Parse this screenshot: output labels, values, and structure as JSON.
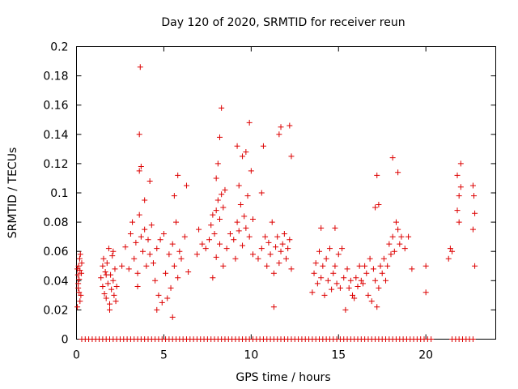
{
  "chart_data": {
    "type": "scatter",
    "title": "Day 120 of 2020, SRMTID for receiver reun",
    "xlabel": "GPS time / hours",
    "ylabel": "SRMTID / TECUs",
    "xlim": [
      0,
      24
    ],
    "ylim": [
      0,
      0.2
    ],
    "xticks": [
      0,
      5,
      10,
      15,
      20
    ],
    "xtick_labels": [
      "0",
      "5",
      "10",
      "15",
      "20"
    ],
    "yticks": [
      0,
      0.02,
      0.04,
      0.06,
      0.08,
      0.1,
      0.12,
      0.14,
      0.16,
      0.18,
      0.2
    ],
    "ytick_labels": [
      "0",
      "0.02",
      "0.04",
      "0.06",
      "0.08",
      "0.1",
      "0.12",
      "0.14",
      "0.16",
      "0.18",
      "0.2"
    ],
    "grid": false,
    "marker": "+",
    "color": "#dd0000",
    "series": [
      {
        "name": "SRMTID",
        "x": [
          0.05,
          0.08,
          0.1,
          0.12,
          0.15,
          0.18,
          0.2,
          0.22,
          0.25,
          0.28,
          0.3,
          0.05,
          0.1,
          0.15,
          0.2,
          1.4,
          1.5,
          1.55,
          1.6,
          1.65,
          1.7,
          1.75,
          1.8,
          1.85,
          1.9,
          1.95,
          2.0,
          2.05,
          2.1,
          2.15,
          2.2,
          2.25,
          2.3,
          1.5,
          1.7,
          1.9,
          2.1,
          2.6,
          2.8,
          3.0,
          3.1,
          3.2,
          3.3,
          3.4,
          3.5,
          3.6,
          3.7,
          3.8,
          3.9,
          4.0,
          4.1,
          4.2,
          4.3,
          3.5,
          3.6,
          3.7,
          3.9,
          4.2,
          3.6,
          3.65,
          4.4,
          4.5,
          4.6,
          4.7,
          4.8,
          4.9,
          5.0,
          5.1,
          5.2,
          5.3,
          5.4,
          5.5,
          5.6,
          5.7,
          5.8,
          5.9,
          6.0,
          6.2,
          6.4,
          4.6,
          5.5,
          5.6,
          5.8,
          6.3,
          6.9,
          7.0,
          7.2,
          7.4,
          7.6,
          7.7,
          7.8,
          7.9,
          8.0,
          8.1,
          8.2,
          8.3,
          8.4,
          8.5,
          8.0,
          8.1,
          8.2,
          8.0,
          8.2,
          8.3,
          7.8,
          8.4,
          8.6,
          8.8,
          9.0,
          9.1,
          9.2,
          9.3,
          9.4,
          9.5,
          9.6,
          9.7,
          9.8,
          9.9,
          10.0,
          10.1,
          9.5,
          9.7,
          9.9,
          10.1,
          9.2,
          9.3,
          10.4,
          10.6,
          10.8,
          10.9,
          11.0,
          11.1,
          11.2,
          11.3,
          11.4,
          11.5,
          11.6,
          11.7,
          11.8,
          11.9,
          12.0,
          12.1,
          12.2,
          12.3,
          10.6,
          10.7,
          11.6,
          11.7,
          12.2,
          12.3,
          11.3,
          13.5,
          13.6,
          13.7,
          13.8,
          13.9,
          14.0,
          14.1,
          14.2,
          14.3,
          14.4,
          14.5,
          14.6,
          14.7,
          14.8,
          14.9,
          15.0,
          15.1,
          15.2,
          15.3,
          15.4,
          15.5,
          15.6,
          15.7,
          15.8,
          15.9,
          16.0,
          16.1,
          16.2,
          16.3,
          14.0,
          14.8,
          16.4,
          16.5,
          16.6,
          16.7,
          16.8,
          16.9,
          17.0,
          17.1,
          17.2,
          17.3,
          17.4,
          17.5,
          17.6,
          17.7,
          17.8,
          17.9,
          18.0,
          18.1,
          18.2,
          18.3,
          18.4,
          18.5,
          18.6,
          18.8,
          19.0,
          17.1,
          17.2,
          17.3,
          18.1,
          18.4,
          19.2,
          20.0,
          20.0,
          21.3,
          21.4,
          21.5,
          21.8,
          21.9,
          22.0,
          21.8,
          21.9,
          22.0,
          22.7,
          22.75,
          22.8,
          22.7,
          22.8
        ],
        "y": [
          0.048,
          0.044,
          0.038,
          0.05,
          0.032,
          0.055,
          0.026,
          0.058,
          0.03,
          0.045,
          0.052,
          0.022,
          0.035,
          0.041,
          0.047,
          0.042,
          0.036,
          0.055,
          0.031,
          0.046,
          0.028,
          0.052,
          0.038,
          0.062,
          0.024,
          0.044,
          0.034,
          0.057,
          0.04,
          0.03,
          0.048,
          0.026,
          0.036,
          0.05,
          0.044,
          0.02,
          0.06,
          0.05,
          0.063,
          0.048,
          0.072,
          0.08,
          0.055,
          0.066,
          0.045,
          0.085,
          0.07,
          0.06,
          0.075,
          0.05,
          0.068,
          0.058,
          0.078,
          0.036,
          0.115,
          0.118,
          0.095,
          0.108,
          0.14,
          0.186,
          0.052,
          0.04,
          0.062,
          0.03,
          0.068,
          0.025,
          0.072,
          0.045,
          0.028,
          0.058,
          0.035,
          0.065,
          0.05,
          0.08,
          0.042,
          0.06,
          0.055,
          0.07,
          0.046,
          0.02,
          0.015,
          0.098,
          0.112,
          0.105,
          0.058,
          0.075,
          0.065,
          0.062,
          0.068,
          0.078,
          0.085,
          0.072,
          0.088,
          0.095,
          0.082,
          0.099,
          0.09,
          0.102,
          0.11,
          0.12,
          0.138,
          0.056,
          0.065,
          0.158,
          0.042,
          0.05,
          0.062,
          0.072,
          0.068,
          0.055,
          0.08,
          0.074,
          0.092,
          0.064,
          0.084,
          0.076,
          0.098,
          0.07,
          0.115,
          0.082,
          0.125,
          0.128,
          0.148,
          0.058,
          0.132,
          0.105,
          0.055,
          0.062,
          0.07,
          0.05,
          0.066,
          0.058,
          0.08,
          0.045,
          0.063,
          0.07,
          0.052,
          0.06,
          0.065,
          0.072,
          0.055,
          0.062,
          0.068,
          0.048,
          0.1,
          0.132,
          0.14,
          0.145,
          0.146,
          0.125,
          0.022,
          0.032,
          0.045,
          0.052,
          0.038,
          0.06,
          0.042,
          0.05,
          0.03,
          0.055,
          0.04,
          0.062,
          0.034,
          0.045,
          0.05,
          0.038,
          0.058,
          0.035,
          0.062,
          0.042,
          0.02,
          0.048,
          0.035,
          0.04,
          0.03,
          0.028,
          0.042,
          0.036,
          0.05,
          0.04,
          0.076,
          0.076,
          0.038,
          0.05,
          0.045,
          0.03,
          0.055,
          0.026,
          0.048,
          0.04,
          0.022,
          0.035,
          0.05,
          0.045,
          0.055,
          0.04,
          0.05,
          0.065,
          0.058,
          0.07,
          0.06,
          0.08,
          0.075,
          0.065,
          0.07,
          0.062,
          0.07,
          0.09,
          0.112,
          0.092,
          0.124,
          0.114,
          0.048,
          0.032,
          0.05,
          0.055,
          0.062,
          0.06,
          0.088,
          0.098,
          0.12,
          0.112,
          0.08,
          0.104,
          0.105,
          0.098,
          0.086,
          0.075,
          0.05
        ],
        "zero_band_x": [
          0.3,
          0.5,
          0.7,
          0.9,
          1.1,
          1.3,
          1.5,
          1.7,
          1.9,
          2.1,
          2.3,
          2.5,
          2.7,
          2.9,
          3.1,
          3.3,
          3.5,
          3.7,
          3.9,
          4.1,
          4.3,
          4.5,
          4.7,
          4.9,
          5.1,
          5.3,
          5.5,
          5.7,
          5.9,
          6.1,
          6.3,
          6.5,
          6.7,
          6.9,
          7.1,
          7.3,
          7.5,
          7.7,
          7.9,
          8.1,
          8.3,
          8.5,
          8.7,
          8.9,
          9.1,
          9.3,
          9.5,
          9.7,
          9.9,
          10.1,
          10.3,
          10.5,
          10.7,
          10.9,
          11.1,
          11.3,
          11.5,
          11.7,
          11.9,
          12.1,
          12.3,
          12.5,
          12.7,
          12.9,
          13.1,
          13.3,
          13.5,
          13.7,
          13.9,
          14.1,
          14.3,
          14.5,
          14.7,
          14.9,
          15.1,
          15.3,
          15.5,
          15.7,
          15.9,
          16.1,
          16.3,
          16.5,
          16.7,
          16.9,
          17.1,
          17.3,
          17.5,
          17.7,
          17.9,
          18.1,
          18.3,
          18.5,
          18.7,
          18.9,
          19.1,
          19.3,
          19.5,
          19.7,
          19.9,
          20.1,
          20.3,
          21.5,
          21.7,
          21.9,
          22.1,
          22.3,
          22.5,
          22.7
        ],
        "zero_band_y": 0
      }
    ]
  }
}
